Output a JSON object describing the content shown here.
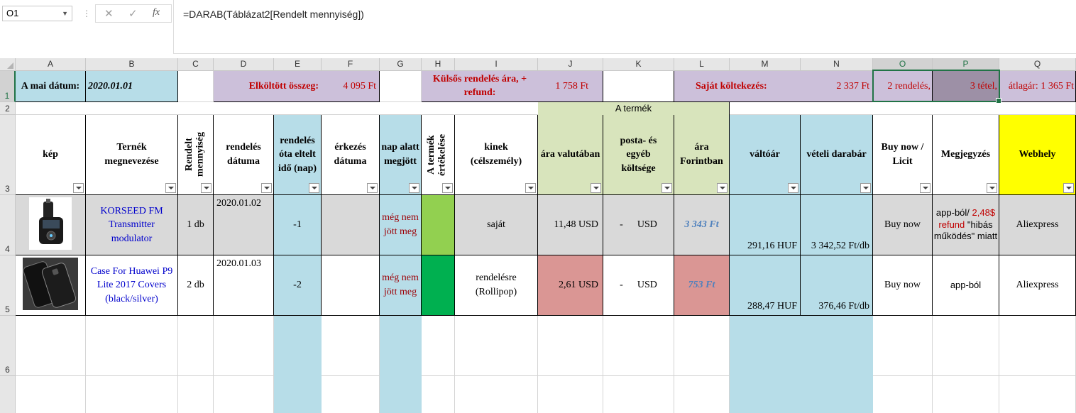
{
  "formula_bar": {
    "name_box": "O1",
    "formula": "=DARAB(Táblázat2[Rendelt mennyiség])",
    "cancel_icon": "✕",
    "enter_icon": "✓",
    "fx_icon": "fx"
  },
  "columns": [
    "A",
    "B",
    "C",
    "D",
    "E",
    "F",
    "G",
    "H",
    "I",
    "J",
    "K",
    "L",
    "M",
    "N",
    "O",
    "P",
    "Q"
  ],
  "rows": [
    "1",
    "2",
    "3",
    "4",
    "5",
    "6"
  ],
  "row1": {
    "a": "A mai dátum:",
    "b": "2020.01.01",
    "d": "Elköltött összeg:",
    "f": "4 095 Ft",
    "h": "Külsős rendelés ára, + refund:",
    "j": "1 758 Ft",
    "l": "Saját költekezés:",
    "n": "2 337 Ft",
    "o": "2 rendelés,",
    "p": "3 tétel,",
    "q": "átlagár: 1 365 Ft"
  },
  "row2": {
    "group_label": "A termék"
  },
  "headers": {
    "a": "kép",
    "b": "Ternék megnevezése",
    "c": "Rendelt mennyiség",
    "d": "rendelés dátuma",
    "e": "rendelés óta eltelt idő (nap)",
    "f": "érkezés dátuma",
    "g": "nap alatt megjött",
    "h": "A termék értékelése",
    "i": "kinek (célszemély)",
    "j": "ára valutában",
    "k": "posta- és egyéb költsége",
    "l": "ára Forintban",
    "m": "váltóár",
    "n": "vételi darabár",
    "o": "Buy now / Licit",
    "p": "Megjegyzés",
    "q": "Webhely"
  },
  "items": [
    {
      "name": "KORSEED FM Transmitter modulator",
      "qty": "1 db",
      "order_date": "2020.01.02",
      "elapsed": "-1",
      "arrived_in": "még nem jött meg",
      "rating_color": "#92d050",
      "for_whom": "saját",
      "price_currency": "11,48 USD",
      "postage_dash": "-",
      "postage_unit": "USD",
      "price_huf": "3 343 Ft",
      "rate": "291,16 HUF",
      "unit_price": "3 342,52 Ft/db",
      "buy_type": "Buy now",
      "note_a": "app-ból/ ",
      "note_b": "2,48$ refund",
      "note_c": " \"hibás működés\" miatt",
      "site": "Aliexpress"
    },
    {
      "name": "Case For Huawei P9 Lite 2017 Covers (black/silver)",
      "qty": "2 db",
      "order_date": "2020.01.03",
      "elapsed": "-2",
      "arrived_in": "még nem jött meg",
      "rating_color": "#00b050",
      "for_whom": "rendelésre (Rollipop)",
      "price_currency": "2,61 USD",
      "postage_dash": "-",
      "postage_unit": "USD",
      "price_huf": "753 Ft",
      "rate": "288,47 HUF",
      "unit_price": "376,46 Ft/db",
      "buy_type": "Buy now",
      "note": "app-ból",
      "site": "Aliexpress"
    }
  ],
  "colors": {
    "blue": "#b7dde8",
    "purple": "#ccc0da",
    "green": "#d8e4bc",
    "yellow": "#ffff00",
    "pink": "#da9694",
    "excel_green": "#217346"
  }
}
